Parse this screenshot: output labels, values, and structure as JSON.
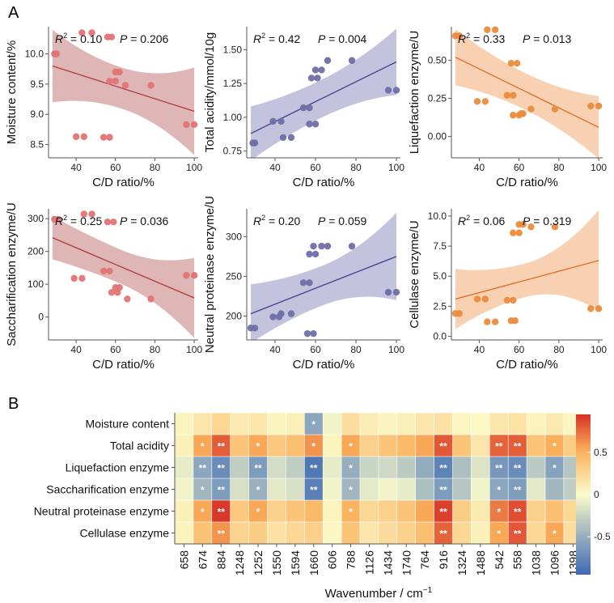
{
  "panel_labels": {
    "a": "A",
    "b": "B"
  },
  "colors": {
    "red": "#e07474",
    "red_band": "#c98686",
    "red_line": "#b03a3a",
    "blue": "#6f6fa6",
    "blue_band": "#9b9bc6",
    "blue_line": "#3f3f8e",
    "orange": "#ea8c3c",
    "orange_band": "#f4b07f",
    "orange_line": "#e06a1e",
    "heat_neg": "#3c69b3",
    "heat_mid": "#fbfbca",
    "heat_pos": "#d73027"
  },
  "chart_data": [
    {
      "type": "scatter",
      "panel": "A1",
      "xlabel": "C/D ratio/%",
      "ylabel": "Moisture content/%",
      "r2": "0.10",
      "p": "0.206",
      "xlim": [
        26,
        102
      ],
      "ylim": [
        8.28,
        10.45
      ],
      "xticks": [
        40,
        60,
        80,
        100
      ],
      "yticks": [
        8.5,
        9.0,
        9.5,
        10.0
      ],
      "ytick_labels": [
        "8.5",
        "9.0",
        "9.5",
        "10.0"
      ],
      "fit": {
        "start": 9.8,
        "end": 9.05,
        "lower_start": 9.25,
        "upper_start": 10.45,
        "lower_end": 8.35,
        "upper_end": 9.8,
        "min_width": 0.34,
        "center": 63
      },
      "color": "red",
      "points": [
        [
          29,
          10.0
        ],
        [
          30,
          10.0
        ],
        [
          43,
          10.35
        ],
        [
          48,
          10.35
        ],
        [
          56,
          10.28
        ],
        [
          58,
          10.28
        ],
        [
          60,
          9.7
        ],
        [
          62,
          9.7
        ],
        [
          57,
          9.55
        ],
        [
          60,
          9.55
        ],
        [
          65,
          9.48
        ],
        [
          78,
          9.48
        ],
        [
          40,
          8.63
        ],
        [
          44,
          8.63
        ],
        [
          54,
          8.62
        ],
        [
          57,
          8.62
        ],
        [
          96,
          8.83
        ],
        [
          100,
          8.83
        ]
      ]
    },
    {
      "type": "scatter",
      "panel": "A2",
      "xlabel": "C/D ratio/%",
      "ylabel": "Total acidity/mmol/10g",
      "r2": "0.42",
      "p": "0.004",
      "xlim": [
        26,
        102
      ],
      "ylim": [
        0.7,
        1.67
      ],
      "xticks": [
        40,
        60,
        80,
        100
      ],
      "yticks": [
        0.75,
        1.0,
        1.25,
        1.5
      ],
      "ytick_labels": [
        "0.75",
        "1.00",
        "1.25",
        "1.50"
      ],
      "fit": {
        "start": 0.88,
        "end": 1.41,
        "lower_start": 0.68,
        "upper_start": 1.08,
        "lower_end": 1.17,
        "upper_end": 1.66,
        "min_width": 0.14,
        "center": 63
      },
      "color": "blue",
      "points": [
        [
          29,
          0.81
        ],
        [
          30,
          0.81
        ],
        [
          39,
          0.97
        ],
        [
          43,
          0.97
        ],
        [
          44,
          0.85
        ],
        [
          48,
          0.85
        ],
        [
          54,
          1.07
        ],
        [
          57,
          1.07
        ],
        [
          57,
          0.95
        ],
        [
          60,
          0.95
        ],
        [
          58,
          1.29
        ],
        [
          61,
          1.29
        ],
        [
          60,
          1.35
        ],
        [
          63,
          1.35
        ],
        [
          66,
          1.42
        ],
        [
          78,
          1.42
        ],
        [
          96,
          1.2
        ],
        [
          100,
          1.2
        ]
      ]
    },
    {
      "type": "scatter",
      "panel": "A3",
      "xlabel": "C/D ratio/%",
      "ylabel": "Liquefaction enzyme/U",
      "r2": "0.33",
      "p": "0.013",
      "xlim": [
        26,
        102
      ],
      "ylim": [
        -0.14,
        0.72
      ],
      "xticks": [
        40,
        60,
        80,
        100
      ],
      "yticks": [
        0.0,
        0.25,
        0.5
      ],
      "ytick_labels": [
        "0.00",
        "0.25",
        "0.50"
      ],
      "fit": {
        "start": 0.52,
        "end": 0.06,
        "lower_start": 0.34,
        "upper_start": 0.71,
        "lower_end": -0.14,
        "upper_end": 0.27,
        "min_width": 0.12,
        "center": 63
      },
      "color": "orange",
      "points": [
        [
          28,
          0.66
        ],
        [
          30,
          0.66
        ],
        [
          44,
          0.7
        ],
        [
          48,
          0.7
        ],
        [
          39,
          0.23
        ],
        [
          43,
          0.23
        ],
        [
          54,
          0.27
        ],
        [
          57,
          0.27
        ],
        [
          56,
          0.48
        ],
        [
          59,
          0.48
        ],
        [
          57,
          0.14
        ],
        [
          60,
          0.14
        ],
        [
          61,
          0.15
        ],
        [
          62,
          0.15
        ],
        [
          66,
          0.18
        ],
        [
          78,
          0.18
        ],
        [
          96,
          0.2
        ],
        [
          100,
          0.2
        ]
      ]
    },
    {
      "type": "scatter",
      "panel": "A4",
      "xlabel": "C/D ratio/%",
      "ylabel": "Saccharification enzyme/U",
      "r2": "0.25",
      "p": "0.036",
      "xlim": [
        26,
        102
      ],
      "ylim": [
        -70,
        330
      ],
      "xticks": [
        40,
        60,
        80,
        100
      ],
      "yticks": [
        0,
        100,
        200,
        300
      ],
      "ytick_labels": [
        "0",
        "100",
        "200",
        "300"
      ],
      "fit": {
        "start": 242,
        "end": 58,
        "lower_start": 178,
        "upper_start": 310,
        "lower_end": -65,
        "upper_end": 180,
        "min_width": 52,
        "center": 63
      },
      "color": "red",
      "points": [
        [
          29,
          298
        ],
        [
          31,
          298
        ],
        [
          44,
          314
        ],
        [
          48,
          314
        ],
        [
          39,
          118
        ],
        [
          43,
          118
        ],
        [
          54,
          140
        ],
        [
          57,
          140
        ],
        [
          56,
          290
        ],
        [
          59,
          290
        ],
        [
          58,
          75
        ],
        [
          61,
          75
        ],
        [
          60,
          90
        ],
        [
          62,
          90
        ],
        [
          66,
          55
        ],
        [
          78,
          55
        ],
        [
          96,
          127
        ],
        [
          100,
          127
        ]
      ]
    },
    {
      "type": "scatter",
      "panel": "A5",
      "xlabel": "C/D ratio/%",
      "ylabel": "Neutral proteinase enzyme/U",
      "r2": "0.20",
      "p": "0.059",
      "xlim": [
        26,
        102
      ],
      "ylim": [
        170,
        335
      ],
      "xticks": [
        40,
        60,
        80,
        100
      ],
      "yticks": [
        200,
        250,
        300
      ],
      "ytick_labels": [
        "200",
        "250",
        "300"
      ],
      "fit": {
        "start": 203,
        "end": 275,
        "lower_start": 168,
        "upper_start": 242,
        "lower_end": 220,
        "upper_end": 330,
        "min_width": 25,
        "center": 63
      },
      "color": "blue",
      "points": [
        [
          28,
          185
        ],
        [
          30,
          185
        ],
        [
          39,
          199
        ],
        [
          42,
          199
        ],
        [
          43,
          203
        ],
        [
          48,
          203
        ],
        [
          54,
          242
        ],
        [
          57,
          242
        ],
        [
          56,
          178
        ],
        [
          59,
          178
        ],
        [
          57,
          278
        ],
        [
          60,
          278
        ],
        [
          59,
          288
        ],
        [
          63,
          288
        ],
        [
          66,
          288
        ],
        [
          78,
          288
        ],
        [
          96,
          230
        ],
        [
          100,
          230
        ]
      ]
    },
    {
      "type": "scatter",
      "panel": "A6",
      "xlabel": "C/D ratio/%",
      "ylabel": "Cellulase enzyme/U",
      "r2": "0.06",
      "p": "0.319",
      "xlim": [
        26,
        102
      ],
      "ylim": [
        -0.3,
        10.6
      ],
      "xticks": [
        40,
        60,
        80,
        100
      ],
      "yticks": [
        0.0,
        2.5,
        5.0,
        7.5,
        10.0
      ],
      "ytick_labels": [
        "0.0",
        "2.5",
        "5.0",
        "7.5",
        "10.0"
      ],
      "fit": {
        "start": 3.1,
        "end": 6.3,
        "lower_start": 0.9,
        "upper_start": 5.9,
        "lower_end": 2.1,
        "upper_end": 10.5,
        "min_width": 1.4,
        "center": 63
      },
      "color": "orange",
      "points": [
        [
          28,
          1.9
        ],
        [
          30,
          1.9
        ],
        [
          39,
          3.1
        ],
        [
          43,
          3.1
        ],
        [
          44,
          1.2
        ],
        [
          48,
          1.2
        ],
        [
          54,
          3.0
        ],
        [
          57,
          3.0
        ],
        [
          56,
          1.3
        ],
        [
          58,
          1.3
        ],
        [
          57,
          8.6
        ],
        [
          60,
          8.6
        ],
        [
          60,
          9.3
        ],
        [
          62,
          9.3
        ],
        [
          66,
          9.1
        ],
        [
          78,
          9.1
        ],
        [
          96,
          2.3
        ],
        [
          100,
          2.3
        ]
      ]
    },
    {
      "type": "heatmap",
      "panel": "B",
      "xlabel": "Wavenumber",
      "xlabel_unit": "cm",
      "xlabel_exp": "−1",
      "rows": [
        "Moisture content",
        "Total acidity",
        "Liquefaction enzyme",
        "Saccharification enzyme",
        "Neutral proteinase enzyme",
        "Cellulase enzyme"
      ],
      "columns": [
        "658",
        "674",
        "884",
        "1248",
        "1252",
        "1550",
        "1594",
        "1660",
        "606",
        "788",
        "1126",
        "1434",
        "1740",
        "764",
        "916",
        "1324",
        "1488",
        "542",
        "558",
        "1038",
        "1096",
        "1398"
      ],
      "values": [
        [
          0.05,
          0.15,
          0.25,
          0.12,
          0.14,
          0.05,
          0.08,
          -0.55,
          -0.05,
          0.2,
          0.1,
          0.05,
          0.08,
          0.15,
          0.18,
          0.04,
          0.02,
          0.15,
          0.17,
          0.06,
          0.12,
          0.04
        ],
        [
          0.08,
          0.55,
          0.8,
          0.38,
          0.55,
          0.35,
          0.42,
          0.62,
          0.05,
          0.55,
          0.3,
          0.38,
          0.45,
          0.55,
          0.82,
          0.38,
          0.15,
          0.78,
          0.8,
          0.38,
          0.52,
          0.32
        ],
        [
          -0.1,
          -0.55,
          -0.72,
          -0.3,
          -0.62,
          -0.2,
          -0.3,
          -0.85,
          -0.1,
          -0.5,
          -0.25,
          -0.22,
          -0.32,
          -0.52,
          -0.78,
          -0.4,
          -0.15,
          -0.65,
          -0.72,
          -0.32,
          -0.58,
          -0.35
        ],
        [
          -0.05,
          -0.45,
          -0.62,
          -0.18,
          -0.48,
          -0.12,
          -0.18,
          -0.8,
          -0.05,
          -0.45,
          -0.12,
          -0.05,
          -0.1,
          -0.4,
          -0.62,
          -0.35,
          -0.05,
          -0.55,
          -0.62,
          -0.12,
          -0.45,
          -0.3
        ],
        [
          0.08,
          0.55,
          0.92,
          0.35,
          0.55,
          0.3,
          0.38,
          0.45,
          0.05,
          0.5,
          0.25,
          0.3,
          0.38,
          0.55,
          0.9,
          0.32,
          0.12,
          0.7,
          0.85,
          0.3,
          0.42,
          0.25
        ],
        [
          0.05,
          0.4,
          0.62,
          0.28,
          0.32,
          0.18,
          0.25,
          0.3,
          0.03,
          0.38,
          0.15,
          0.22,
          0.3,
          0.42,
          0.78,
          0.25,
          0.08,
          0.55,
          0.82,
          0.25,
          0.55,
          0.2
        ]
      ],
      "stars": [
        [
          "",
          "",
          "",
          "",
          "",
          "",
          "",
          "*",
          "",
          "",
          "",
          "",
          "",
          "",
          "",
          "",
          "",
          "",
          "",
          "",
          "",
          ""
        ],
        [
          "",
          "*",
          "**",
          "",
          "*",
          "",
          "",
          "*",
          "",
          "*",
          "",
          "",
          "",
          "",
          "**",
          "",
          "",
          "**",
          "**",
          "",
          "*",
          ""
        ],
        [
          "",
          "**",
          "**",
          "",
          "**",
          "",
          "",
          "**",
          "",
          "*",
          "",
          "",
          "",
          "",
          "**",
          "",
          "",
          "**",
          "**",
          "",
          "*",
          ""
        ],
        [
          "",
          "*",
          "**",
          "",
          "*",
          "",
          "",
          "**",
          "",
          "*",
          "",
          "",
          "",
          "",
          "**",
          "",
          "",
          "*",
          "**",
          "",
          "",
          ""
        ],
        [
          "",
          "*",
          "**",
          "",
          "*",
          "",
          "",
          "",
          "",
          "*",
          "",
          "",
          "",
          "",
          "**",
          "",
          "",
          "*",
          "**",
          "",
          "",
          ""
        ],
        [
          "",
          "",
          "**",
          "",
          "",
          "",
          "",
          "",
          "",
          "",
          "",
          "",
          "",
          "",
          "**",
          "",
          "",
          "*",
          "**",
          "",
          "*",
          ""
        ]
      ],
      "colorbar": {
        "min": -0.95,
        "max": 0.95,
        "ticks": [
          0.5,
          0,
          -0.5
        ],
        "tick_labels": [
          "0.5",
          "0",
          "-0.5"
        ]
      }
    }
  ]
}
